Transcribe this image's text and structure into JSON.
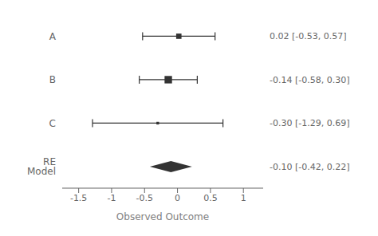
{
  "chart_data": {
    "type": "forest",
    "xlabel": "Observed Outcome",
    "categories": [
      "A",
      "B",
      "C",
      "RE Model"
    ],
    "values": [
      0.02,
      -0.14,
      -0.3,
      -0.1
    ],
    "ci_lower": [
      -0.53,
      -0.58,
      -1.29,
      -0.42
    ],
    "ci_upper": [
      0.57,
      0.3,
      0.69,
      0.22
    ],
    "value_labels": [
      "0.02 [-0.53, 0.57]",
      "-0.14 [-0.58, 0.30]",
      "-0.30 [-1.29, 0.69]",
      "-0.10 [-0.42, 0.22]"
    ],
    "marker": [
      "square",
      "square",
      "square",
      "diamond"
    ],
    "square_sizes": [
      5,
      7,
      2.5,
      null
    ],
    "xlim": [
      -1.75,
      1.3
    ],
    "xticks": [
      -1.5,
      -1,
      -0.5,
      0,
      0.5,
      1
    ]
  }
}
